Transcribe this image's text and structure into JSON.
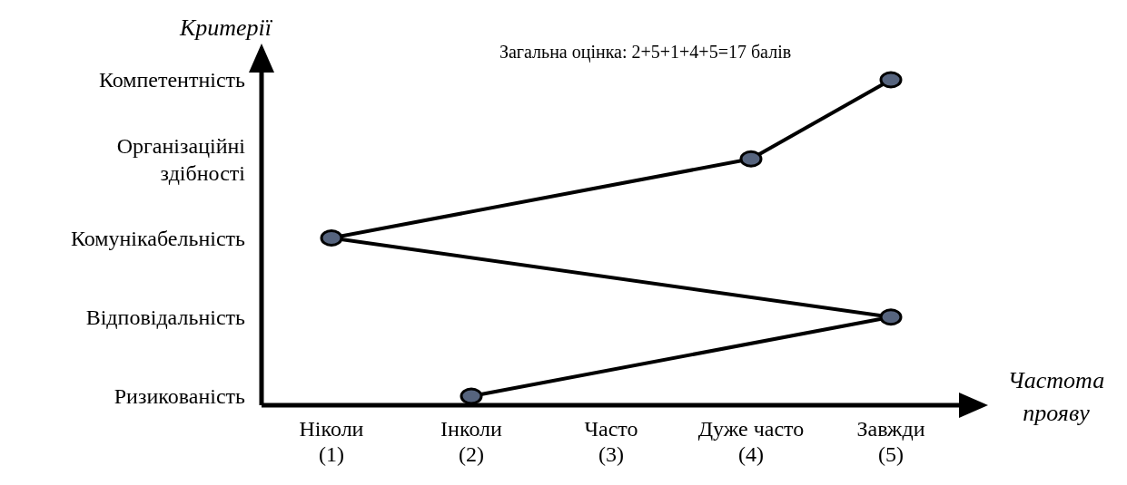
{
  "chart_data": {
    "type": "line",
    "orientation": "horizontal",
    "ylabel": "Критерії",
    "xlabel": "Частота прояву",
    "annotations": [
      "Загальна оцінка: 2+5+1+4+5=17 балів"
    ],
    "categories": [
      "Компетентність",
      "Організаційні здібності",
      "Комунікабельність",
      "Відповідальність",
      "Ризикованість"
    ],
    "series": [
      {
        "color": "#000000",
        "values": [
          5,
          4,
          1,
          5,
          2
        ]
      }
    ],
    "xlim": [
      0.5,
      5.5
    ],
    "xticks": [
      {
        "value": 1,
        "label": "Ніколи (1)"
      },
      {
        "value": 2,
        "label": "Інколи (2)"
      },
      {
        "value": 3,
        "label": "Часто (3)"
      },
      {
        "value": 4,
        "label": "Дуже часто (4)"
      },
      {
        "value": 5,
        "label": "Завжди (5)"
      }
    ],
    "marker": "circle",
    "line_style": "solid",
    "grid": false
  }
}
